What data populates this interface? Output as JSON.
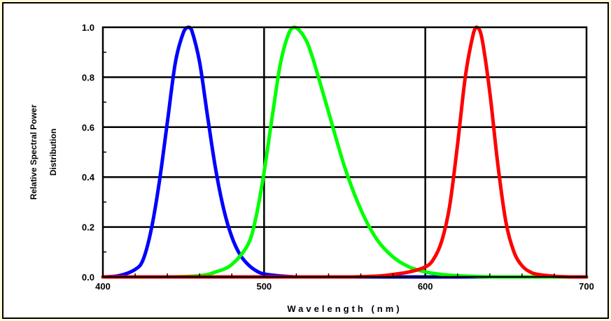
{
  "chart_data": {
    "type": "line",
    "title": "",
    "xlabel": "Wavelength (nm)",
    "ylabel": [
      "Relative Spectral Power",
      "Distribution"
    ],
    "xlim": [
      400,
      700
    ],
    "ylim": [
      0,
      1
    ],
    "x_tick_labels": [
      "400",
      "500",
      "600",
      "700"
    ],
    "x_tick_values": [
      400,
      500,
      600,
      700
    ],
    "y_tick_labels": [
      "0.0",
      "0.2",
      "0.4",
      "0.6",
      "0.8",
      "1.0"
    ],
    "y_tick_values": [
      0,
      0.2,
      0.4,
      0.6,
      0.8,
      1.0
    ],
    "grid": true,
    "legend": "none",
    "series": [
      {
        "color": "#0000ff",
        "peak": 453,
        "x": [
          400,
          410,
          420,
          425,
          430,
          435,
          440,
          445,
          450,
          453,
          455,
          460,
          465,
          470,
          475,
          480,
          485,
          490,
          495,
          500,
          510,
          520,
          540,
          560,
          580,
          600,
          620,
          640,
          660,
          680,
          700
        ],
        "y": [
          0.0,
          0.005,
          0.03,
          0.07,
          0.19,
          0.38,
          0.62,
          0.86,
          0.98,
          1.0,
          0.99,
          0.86,
          0.64,
          0.43,
          0.27,
          0.16,
          0.09,
          0.05,
          0.025,
          0.012,
          0.004,
          0.0,
          0.0,
          0.0,
          0.0,
          0.0,
          0.0,
          0.0,
          0.0,
          0.0,
          0.0
        ]
      },
      {
        "color": "#00ff00",
        "peak": 519,
        "x": [
          400,
          440,
          460,
          470,
          480,
          490,
          495,
          500,
          505,
          510,
          515,
          519,
          525,
          530,
          540,
          550,
          560,
          570,
          580,
          590,
          600,
          610,
          620,
          640,
          660,
          680,
          700
        ],
        "y": [
          0.0,
          0.0,
          0.005,
          0.02,
          0.05,
          0.13,
          0.24,
          0.42,
          0.64,
          0.85,
          0.97,
          1.0,
          0.96,
          0.88,
          0.66,
          0.44,
          0.27,
          0.15,
          0.08,
          0.04,
          0.02,
          0.01,
          0.005,
          0.0,
          0.0,
          0.0,
          0.0
        ]
      },
      {
        "color": "#ff0000",
        "peak": 632,
        "x": [
          400,
          500,
          550,
          570,
          580,
          590,
          600,
          605,
          610,
          615,
          620,
          625,
          630,
          632,
          635,
          640,
          645,
          650,
          655,
          660,
          665,
          670,
          680,
          690,
          700
        ],
        "y": [
          0.0,
          0.0,
          0.0,
          0.003,
          0.01,
          0.02,
          0.04,
          0.07,
          0.14,
          0.28,
          0.53,
          0.81,
          0.98,
          1.0,
          0.96,
          0.74,
          0.45,
          0.22,
          0.1,
          0.045,
          0.02,
          0.01,
          0.003,
          0.0,
          0.0
        ]
      }
    ]
  }
}
